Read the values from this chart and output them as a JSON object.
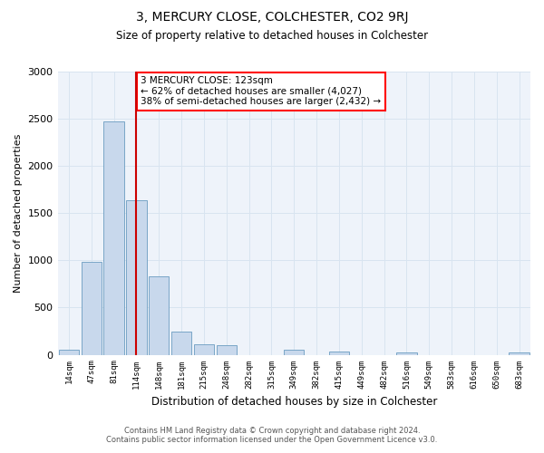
{
  "title": "3, MERCURY CLOSE, COLCHESTER, CO2 9RJ",
  "subtitle": "Size of property relative to detached houses in Colchester",
  "xlabel": "Distribution of detached houses by size in Colchester",
  "ylabel": "Number of detached properties",
  "footer_line1": "Contains HM Land Registry data © Crown copyright and database right 2024.",
  "footer_line2": "Contains public sector information licensed under the Open Government Licence v3.0.",
  "annotation_line1": "3 MERCURY CLOSE: 123sqm",
  "annotation_line2": "← 62% of detached houses are smaller (4,027)",
  "annotation_line3": "38% of semi-detached houses are larger (2,432) →",
  "bar_color": "#c8d8ec",
  "bar_edge_color": "#6a9cc0",
  "vline_color": "#cc0000",
  "vline_position": 3.0,
  "categories": [
    "14sqm",
    "47sqm",
    "81sqm",
    "114sqm",
    "148sqm",
    "181sqm",
    "215sqm",
    "248sqm",
    "282sqm",
    "315sqm",
    "349sqm",
    "382sqm",
    "415sqm",
    "449sqm",
    "482sqm",
    "516sqm",
    "549sqm",
    "583sqm",
    "616sqm",
    "650sqm",
    "683sqm"
  ],
  "values": [
    55,
    980,
    2470,
    1640,
    830,
    250,
    110,
    100,
    0,
    0,
    55,
    0,
    30,
    0,
    0,
    20,
    0,
    0,
    0,
    0,
    25
  ],
  "ylim": [
    0,
    3000
  ],
  "yticks": [
    0,
    500,
    1000,
    1500,
    2000,
    2500,
    3000
  ],
  "grid_color": "#d8e4f0",
  "background_color": "#eef3fa",
  "title_fontsize": 10,
  "subtitle_fontsize": 8.5,
  "ylabel_fontsize": 8,
  "xlabel_fontsize": 8.5,
  "ytick_fontsize": 8,
  "xtick_fontsize": 6.5,
  "annotation_fontsize": 7.5,
  "footer_fontsize": 6
}
